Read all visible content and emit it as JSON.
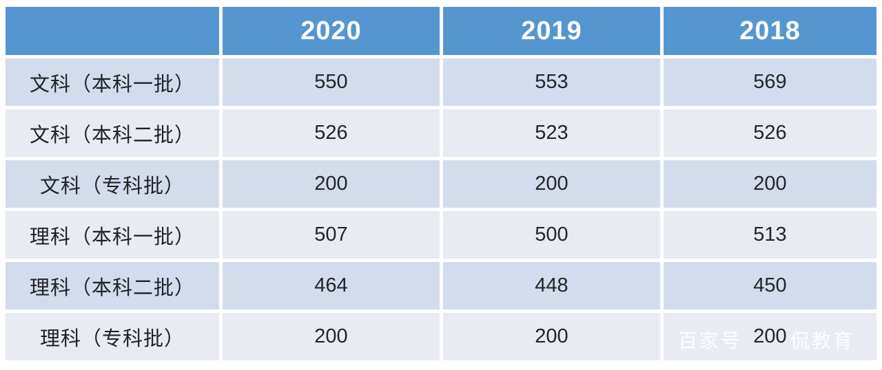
{
  "table": {
    "header": {
      "corner": "",
      "columns": [
        "2020",
        "2019",
        "2018"
      ]
    },
    "rows": [
      {
        "label": "文科（本科一批）",
        "values": [
          "550",
          "553",
          "569"
        ]
      },
      {
        "label": "文科（本科二批）",
        "values": [
          "526",
          "523",
          "526"
        ]
      },
      {
        "label": "文科（专科批）",
        "values": [
          "200",
          "200",
          "200"
        ]
      },
      {
        "label": "理科（本科一批）",
        "values": [
          "507",
          "500",
          "513"
        ]
      },
      {
        "label": "理科（本科二批）",
        "values": [
          "464",
          "448",
          "450"
        ]
      },
      {
        "label": "理科（专科批）",
        "values": [
          "200",
          "200",
          "200"
        ]
      }
    ]
  },
  "watermark": {
    "prefix": "百家号",
    "suffix": "侃教育"
  },
  "colors": {
    "header_bg": "#5696d0",
    "header_text": "#fbfcfe",
    "row_band_blue": "#d3dcec",
    "row_band_light": "#e9ebf3",
    "cell_text": "#232428",
    "background": "#ffffff"
  },
  "chart_data": {
    "type": "table",
    "columns": [
      "",
      "2020",
      "2019",
      "2018"
    ],
    "rows": [
      [
        "文科（本科一批）",
        550,
        553,
        569
      ],
      [
        "文科（本科二批）",
        526,
        523,
        526
      ],
      [
        "文科（专科批）",
        200,
        200,
        200
      ],
      [
        "理科（本科一批）",
        507,
        500,
        513
      ],
      [
        "理科（本科二批）",
        464,
        448,
        450
      ],
      [
        "理科（专科批）",
        200,
        200,
        200
      ]
    ],
    "legend_position": "none",
    "grid": false,
    "notes": "Admission score cut-off lines table; banded rows; blue header with years"
  }
}
